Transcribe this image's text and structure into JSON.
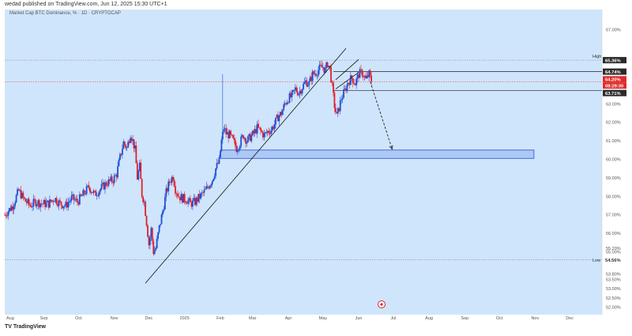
{
  "header": {
    "publisher_line": "wedad published on TradingView.com, Jun 12, 2025 15:30 UTC+1",
    "symbol_line": "Market Cap BTC Dominance, % · 1D · CRYPTOCAP"
  },
  "footer": {
    "logo_text": "TradingView"
  },
  "toolbar": {
    "scale_label": "%"
  },
  "colors": {
    "plot_bg": "#cfe5fb",
    "up": "#1e4fd8",
    "down": "#e0202c",
    "trendline": "#111111",
    "zone_fill": "#8fb2f0",
    "zone_border": "#2a4fd4",
    "current_price_bg": "#e02b2b"
  },
  "chart_data": {
    "type": "candlestick",
    "title": "Market Cap BTC Dominance, %",
    "ylim": [
      51.6,
      68.1
    ],
    "x_tick_labels": [
      "Aug",
      "Sep",
      "Oct",
      "Nov",
      "Dec",
      "2025",
      "Feb",
      "Mar",
      "Apr",
      "May",
      "Jun",
      "Jul",
      "Aug",
      "Sep",
      "Oct",
      "Nov",
      "Dec"
    ],
    "y_tick_labels": [
      "52.00%",
      "52.50%",
      "53.00%",
      "53.50%",
      "53.80%",
      "55.00%",
      "55.20%",
      "56.00%",
      "57.00%",
      "58.00%",
      "59.00%",
      "60.00%",
      "61.00%",
      "62.00%",
      "63.00%",
      "67.00%"
    ],
    "price_labels": {
      "high_label": "High",
      "high_value": "65.36%",
      "level_1": "64.74%",
      "current": "64.20%",
      "countdown": "08:29:30",
      "level_2": "63.71%",
      "low_label": "Low",
      "low_value": "54.56%"
    },
    "close_path": [
      [
        "2024-07-29",
        57.0
      ],
      [
        "2024-08-05",
        57.5
      ],
      [
        "2024-08-10",
        58.3
      ],
      [
        "2024-08-15",
        57.8
      ],
      [
        "2024-08-20",
        57.5
      ],
      [
        "2024-08-25",
        57.7
      ],
      [
        "2024-08-31",
        57.6
      ],
      [
        "2024-09-05",
        57.6
      ],
      [
        "2024-09-10",
        57.9
      ],
      [
        "2024-09-15",
        57.6
      ],
      [
        "2024-09-20",
        57.5
      ],
      [
        "2024-09-25",
        57.9
      ],
      [
        "2024-09-30",
        57.7
      ],
      [
        "2024-10-05",
        58.1
      ],
      [
        "2024-10-10",
        58.5
      ],
      [
        "2024-10-15",
        58.1
      ],
      [
        "2024-10-20",
        58.4
      ],
      [
        "2024-10-25",
        58.7
      ],
      [
        "2024-10-31",
        58.9
      ],
      [
        "2024-11-03",
        59.2
      ],
      [
        "2024-11-06",
        60.1
      ],
      [
        "2024-11-09",
        60.9
      ],
      [
        "2024-11-12",
        60.6
      ],
      [
        "2024-11-15",
        61.4
      ],
      [
        "2024-11-17",
        61.0
      ],
      [
        "2024-11-19",
        60.5
      ],
      [
        "2024-11-21",
        59.0
      ],
      [
        "2024-11-23",
        59.6
      ],
      [
        "2024-11-25",
        58.1
      ],
      [
        "2024-11-27",
        57.7
      ],
      [
        "2024-11-29",
        56.6
      ],
      [
        "2024-12-01",
        55.4
      ],
      [
        "2024-12-03",
        56.2
      ],
      [
        "2024-12-05",
        55.0
      ],
      [
        "2024-12-07",
        55.2
      ],
      [
        "2024-12-10",
        56.3
      ],
      [
        "2024-12-13",
        57.2
      ],
      [
        "2024-12-16",
        58.2
      ],
      [
        "2024-12-19",
        58.8
      ],
      [
        "2024-12-22",
        59.1
      ],
      [
        "2024-12-24",
        58.4
      ],
      [
        "2024-12-27",
        58.0
      ],
      [
        "2024-12-30",
        57.9
      ],
      [
        "2025-01-03",
        57.8
      ],
      [
        "2025-01-06",
        57.6
      ],
      [
        "2025-01-10",
        57.7
      ],
      [
        "2025-01-13",
        57.9
      ],
      [
        "2025-01-16",
        58.1
      ],
      [
        "2025-01-19",
        58.3
      ],
      [
        "2025-01-22",
        58.6
      ],
      [
        "2025-01-25",
        58.9
      ],
      [
        "2025-01-28",
        59.5
      ],
      [
        "2025-01-31",
        59.9
      ],
      [
        "2025-02-02",
        61.0
      ],
      [
        "2025-02-04",
        61.7
      ],
      [
        "2025-02-06",
        61.4
      ],
      [
        "2025-02-09",
        61.3
      ],
      [
        "2025-02-12",
        61.0
      ],
      [
        "2025-02-15",
        60.6
      ],
      [
        "2025-02-18",
        60.9
      ],
      [
        "2025-02-21",
        61.3
      ],
      [
        "2025-02-24",
        61.0
      ],
      [
        "2025-02-27",
        61.2
      ],
      [
        "2025-03-02",
        61.4
      ],
      [
        "2025-03-05",
        61.7
      ],
      [
        "2025-03-08",
        61.5
      ],
      [
        "2025-03-11",
        61.3
      ],
      [
        "2025-03-14",
        61.5
      ],
      [
        "2025-03-17",
        61.6
      ],
      [
        "2025-03-20",
        61.9
      ],
      [
        "2025-03-23",
        62.3
      ],
      [
        "2025-03-26",
        62.5
      ],
      [
        "2025-03-29",
        63.0
      ],
      [
        "2025-04-01",
        63.3
      ],
      [
        "2025-04-04",
        63.4
      ],
      [
        "2025-04-07",
        63.8
      ],
      [
        "2025-04-10",
        63.6
      ],
      [
        "2025-04-13",
        63.9
      ],
      [
        "2025-04-16",
        64.2
      ],
      [
        "2025-04-19",
        64.1
      ],
      [
        "2025-04-22",
        64.6
      ],
      [
        "2025-04-25",
        64.7
      ],
      [
        "2025-04-28",
        64.9
      ],
      [
        "2025-05-01",
        65.0
      ],
      [
        "2025-05-03",
        64.8
      ],
      [
        "2025-05-05",
        65.2
      ],
      [
        "2025-05-07",
        64.9
      ],
      [
        "2025-05-09",
        63.9
      ],
      [
        "2025-05-11",
        62.9
      ],
      [
        "2025-05-13",
        62.3
      ],
      [
        "2025-05-15",
        62.8
      ],
      [
        "2025-05-17",
        63.3
      ],
      [
        "2025-05-20",
        63.7
      ],
      [
        "2025-05-23",
        64.2
      ],
      [
        "2025-05-26",
        64.4
      ],
      [
        "2025-05-29",
        64.1
      ],
      [
        "2025-06-01",
        64.6
      ],
      [
        "2025-06-04",
        64.7
      ],
      [
        "2025-06-07",
        64.3
      ],
      [
        "2025-06-10",
        64.6
      ],
      [
        "2025-06-12",
        64.2
      ]
    ],
    "spike_wick": {
      "date": "2025-02-03",
      "high": 64.6
    },
    "support_zone": {
      "y_top": 60.5,
      "y_bottom": 60.05,
      "x_start": "2025-02-01",
      "x_end": "2025-10-31"
    },
    "trendlines": [
      {
        "from": [
          "2024-11-28",
          53.3
        ],
        "to": [
          "2025-05-21",
          66.0
        ]
      },
      {
        "from": [
          "2025-05-12",
          63.8
        ],
        "to": [
          "2025-06-01",
          64.7
        ]
      },
      {
        "from": [
          "2025-05-12",
          64.3
        ],
        "to": [
          "2025-06-01",
          65.4
        ]
      }
    ],
    "projection_arrow": {
      "from": [
        "2025-06-11",
        64.2
      ],
      "to": [
        "2025-06-30",
        60.55
      ]
    },
    "grid": false,
    "legend": "none"
  }
}
